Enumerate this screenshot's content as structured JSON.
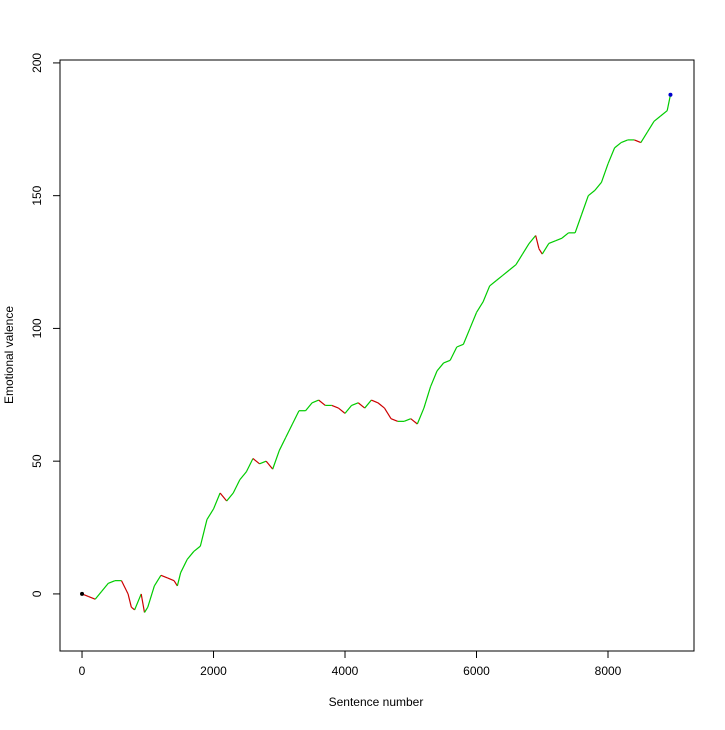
{
  "chart_data": {
    "type": "line",
    "xlabel": "Sentence number",
    "ylabel": "Emotional valence",
    "x": [
      0,
      100,
      200,
      300,
      400,
      500,
      600,
      700,
      750,
      800,
      900,
      950,
      1000,
      1100,
      1200,
      1300,
      1400,
      1450,
      1500,
      1600,
      1700,
      1800,
      1900,
      2000,
      2100,
      2200,
      2300,
      2400,
      2500,
      2600,
      2700,
      2800,
      2900,
      3000,
      3100,
      3200,
      3300,
      3400,
      3500,
      3600,
      3700,
      3800,
      3900,
      4000,
      4100,
      4200,
      4300,
      4400,
      4500,
      4600,
      4700,
      4800,
      4900,
      5000,
      5100,
      5200,
      5300,
      5400,
      5500,
      5600,
      5700,
      5800,
      5900,
      6000,
      6100,
      6200,
      6300,
      6400,
      6500,
      6600,
      6700,
      6800,
      6900,
      6950,
      7000,
      7100,
      7200,
      7300,
      7400,
      7500,
      7600,
      7700,
      7800,
      7900,
      8000,
      8100,
      8200,
      8300,
      8400,
      8500,
      8600,
      8700,
      8800,
      8900,
      8950
    ],
    "values": [
      0,
      -1,
      -2,
      1,
      4,
      5,
      5,
      0,
      -5,
      -6,
      0,
      -7,
      -5,
      3,
      7,
      6,
      5,
      3,
      8,
      13,
      16,
      18,
      28,
      32,
      38,
      35,
      38,
      43,
      46,
      51,
      49,
      50,
      47,
      54,
      59,
      64,
      69,
      69,
      72,
      73,
      71,
      71,
      70,
      68,
      71,
      72,
      70,
      73,
      72,
      70,
      66,
      65,
      65,
      66,
      64,
      70,
      78,
      84,
      87,
      88,
      93,
      94,
      100,
      106,
      110,
      116,
      118,
      120,
      122,
      124,
      128,
      132,
      135,
      130,
      128,
      132,
      133,
      134,
      136,
      136,
      143,
      150,
      152,
      155,
      162,
      168,
      170,
      171,
      171,
      170,
      174,
      178,
      180,
      182,
      188
    ],
    "up_color": "#00cc00",
    "down_color": "#cc0000",
    "start_color": "#000000",
    "end_color": "#0000cc",
    "xlim": [
      -335,
      9308
    ],
    "xticks": [
      0,
      2000,
      4000,
      6000,
      8000
    ],
    "ylim": [
      -21.5,
      201.1
    ],
    "yticks": [
      0,
      50,
      100,
      150,
      200
    ]
  }
}
